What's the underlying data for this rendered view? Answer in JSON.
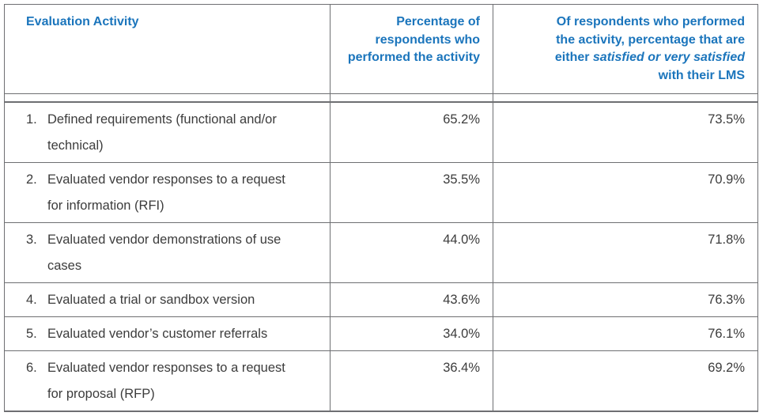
{
  "table": {
    "columns": {
      "col1": {
        "label": "Evaluation Activity"
      },
      "col2": {
        "label": "Percentage of respondents who performed the activity"
      },
      "col3": {
        "prefix": "Of respondents who performed the activity, percentage that are either ",
        "italic": "satisfied or very satisfied",
        "suffix": " with their LMS"
      }
    },
    "rows": [
      {
        "number": "1.",
        "activity": "Defined requirements (functional and/or technical)",
        "performed": "65.2%",
        "satisfied": "73.5%"
      },
      {
        "number": "2.",
        "activity": "Evaluated vendor responses to a request for information (RFI)",
        "performed": "35.5%",
        "satisfied": "70.9%"
      },
      {
        "number": "3.",
        "activity": "Evaluated vendor demonstrations of use cases",
        "performed": "44.0%",
        "satisfied": "71.8%"
      },
      {
        "number": "4.",
        "activity": "Evaluated a trial or sandbox version",
        "performed": "43.6%",
        "satisfied": "76.3%"
      },
      {
        "number": "5.",
        "activity": "Evaluated vendor’s customer referrals",
        "performed": "34.0%",
        "satisfied": "76.1%"
      },
      {
        "number": "6.",
        "activity": "Evaluated vendor responses to a request for proposal (RFP)",
        "performed": "36.4%",
        "satisfied": "69.2%"
      }
    ],
    "colors": {
      "header_blue": "#1b75bc",
      "body_text": "#3c3c3c",
      "border_gray": "#6e6f72"
    }
  },
  "chart_data": {
    "type": "table",
    "title": "",
    "columns": [
      "Evaluation Activity",
      "Percentage of respondents who performed the activity",
      "Of respondents who performed the activity, percentage that are either satisfied or very satisfied with their LMS"
    ],
    "categories": [
      "Defined requirements (functional and/or technical)",
      "Evaluated vendor responses to a request for information (RFI)",
      "Evaluated vendor demonstrations of use cases",
      "Evaluated a trial or sandbox version",
      "Evaluated vendor’s customer referrals",
      "Evaluated vendor responses to a request for proposal (RFP)"
    ],
    "series": [
      {
        "name": "Percentage of respondents who performed the activity",
        "values": [
          65.2,
          35.5,
          44.0,
          43.6,
          34.0,
          36.4
        ]
      },
      {
        "name": "Percentage satisfied or very satisfied with their LMS",
        "values": [
          73.5,
          70.9,
          71.8,
          76.3,
          76.1,
          69.2
        ]
      }
    ],
    "legend_position": "none",
    "grid": true
  }
}
